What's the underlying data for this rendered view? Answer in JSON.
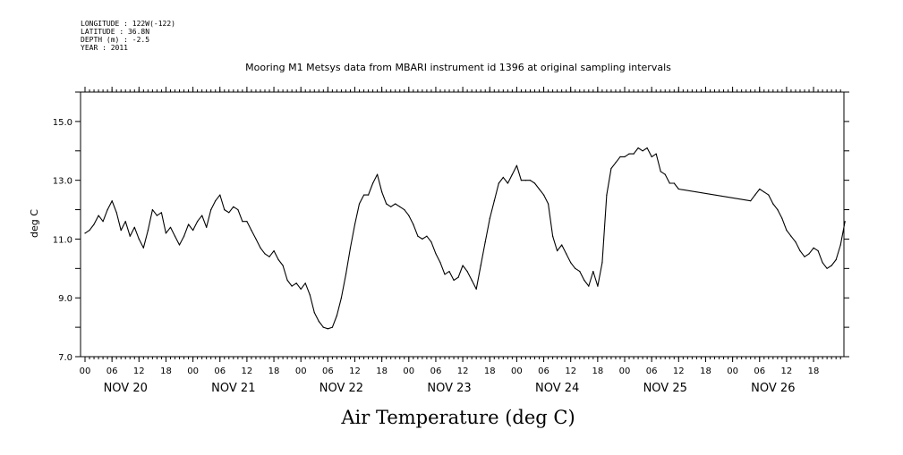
{
  "header": {
    "longitude": "LONGITUDE : 122W(-122)",
    "latitude": "LATITUDE : 36.8N",
    "depth": "DEPTH (m) : -2.5",
    "year": "YEAR : 2011"
  },
  "chart_data": {
    "type": "line",
    "title": "Mooring M1 Metsys data from MBARI instrument id 1396 at original sampling intervals",
    "xlabel": "Air Temperature (deg C)",
    "ylabel": "deg C",
    "ylim": [
      7.0,
      16.0
    ],
    "yticks": [
      7.0,
      9.0,
      11.0,
      13.0,
      15.0
    ],
    "ytick_labels": [
      "7.0",
      "9.0",
      "11.0",
      "13.0",
      "15.0"
    ],
    "xlim": [
      0,
      169
    ],
    "hour_tick_labels": [
      "00",
      "06",
      "12",
      "18",
      "00",
      "06",
      "12",
      "18",
      "00",
      "06",
      "12",
      "18",
      "00",
      "06",
      "12",
      "18",
      "00",
      "06",
      "12",
      "18",
      "00",
      "06",
      "12",
      "18",
      "00",
      "06",
      "12",
      "18"
    ],
    "day_labels": [
      "NOV 20",
      "NOV 21",
      "NOV 22",
      "NOV 23",
      "NOV 24",
      "NOV 25",
      "NOV 26"
    ],
    "x_units": "hours since 2011-11-20 00:00",
    "grid": false,
    "series": [
      {
        "color": "#000000",
        "points": [
          [
            0,
            11.2
          ],
          [
            1,
            11.3
          ],
          [
            2,
            11.5
          ],
          [
            3,
            11.8
          ],
          [
            4,
            11.6
          ],
          [
            5,
            12.0
          ],
          [
            6,
            12.3
          ],
          [
            7,
            11.9
          ],
          [
            8,
            11.3
          ],
          [
            9,
            11.6
          ],
          [
            10,
            11.1
          ],
          [
            11,
            11.4
          ],
          [
            12,
            11.0
          ],
          [
            13,
            10.7
          ],
          [
            14,
            11.3
          ],
          [
            15,
            12.0
          ],
          [
            16,
            11.8
          ],
          [
            17,
            11.9
          ],
          [
            18,
            11.2
          ],
          [
            19,
            11.4
          ],
          [
            20,
            11.1
          ],
          [
            21,
            10.8
          ],
          [
            22,
            11.1
          ],
          [
            23,
            11.5
          ],
          [
            24,
            11.3
          ],
          [
            25,
            11.6
          ],
          [
            26,
            11.8
          ],
          [
            27,
            11.4
          ],
          [
            28,
            12.0
          ],
          [
            29,
            12.3
          ],
          [
            30,
            12.5
          ],
          [
            31,
            12.0
          ],
          [
            32,
            11.9
          ],
          [
            33,
            12.1
          ],
          [
            34,
            12.0
          ],
          [
            35,
            11.6
          ],
          [
            36,
            11.6
          ],
          [
            37,
            11.3
          ],
          [
            38,
            11.0
          ],
          [
            39,
            10.7
          ],
          [
            40,
            10.5
          ],
          [
            41,
            10.4
          ],
          [
            42,
            10.6
          ],
          [
            43,
            10.3
          ],
          [
            44,
            10.1
          ],
          [
            45,
            9.6
          ],
          [
            46,
            9.4
          ],
          [
            47,
            9.5
          ],
          [
            48,
            9.3
          ],
          [
            49,
            9.5
          ],
          [
            50,
            9.1
          ],
          [
            51,
            8.5
          ],
          [
            52,
            8.2
          ],
          [
            53,
            8.0
          ],
          [
            54,
            7.95
          ],
          [
            55,
            8.0
          ],
          [
            56,
            8.4
          ],
          [
            57,
            9.0
          ],
          [
            58,
            9.8
          ],
          [
            59,
            10.7
          ],
          [
            60,
            11.5
          ],
          [
            61,
            12.2
          ],
          [
            62,
            12.5
          ],
          [
            63,
            12.5
          ],
          [
            64,
            12.9
          ],
          [
            65,
            13.2
          ],
          [
            66,
            12.6
          ],
          [
            67,
            12.2
          ],
          [
            68,
            12.1
          ],
          [
            69,
            12.2
          ],
          [
            70,
            12.1
          ],
          [
            71,
            12.0
          ],
          [
            72,
            11.8
          ],
          [
            73,
            11.5
          ],
          [
            74,
            11.1
          ],
          [
            75,
            11.0
          ],
          [
            76,
            11.1
          ],
          [
            77,
            10.9
          ],
          [
            78,
            10.5
          ],
          [
            79,
            10.2
          ],
          [
            80,
            9.8
          ],
          [
            81,
            9.9
          ],
          [
            82,
            9.6
          ],
          [
            83,
            9.7
          ],
          [
            84,
            10.1
          ],
          [
            85,
            9.9
          ],
          [
            86,
            9.6
          ],
          [
            87,
            9.3
          ],
          [
            88,
            10.1
          ],
          [
            89,
            10.9
          ],
          [
            90,
            11.7
          ],
          [
            91,
            12.3
          ],
          [
            92,
            12.9
          ],
          [
            93,
            13.1
          ],
          [
            94,
            12.9
          ],
          [
            95,
            13.2
          ],
          [
            96,
            13.5
          ],
          [
            97,
            13.0
          ],
          [
            98,
            13.0
          ],
          [
            99,
            13.0
          ],
          [
            100,
            12.9
          ],
          [
            101,
            12.7
          ],
          [
            102,
            12.5
          ],
          [
            103,
            12.2
          ],
          [
            104,
            11.1
          ],
          [
            105,
            10.6
          ],
          [
            106,
            10.8
          ],
          [
            107,
            10.5
          ],
          [
            108,
            10.2
          ],
          [
            109,
            10.0
          ],
          [
            110,
            9.9
          ],
          [
            111,
            9.6
          ],
          [
            112,
            9.4
          ],
          [
            113,
            9.9
          ],
          [
            114,
            9.4
          ],
          [
            115,
            10.2
          ],
          [
            116,
            12.5
          ],
          [
            117,
            13.4
          ],
          [
            118,
            13.6
          ],
          [
            119,
            13.8
          ],
          [
            120,
            13.8
          ],
          [
            121,
            13.9
          ],
          [
            122,
            13.9
          ],
          [
            123,
            14.1
          ],
          [
            124,
            14.0
          ],
          [
            125,
            14.1
          ],
          [
            126,
            13.8
          ],
          [
            127,
            13.9
          ],
          [
            128,
            13.3
          ],
          [
            129,
            13.2
          ],
          [
            130,
            12.9
          ],
          [
            131,
            12.9
          ],
          [
            132,
            12.7
          ],
          [
            148,
            12.3
          ],
          [
            149,
            12.5
          ],
          [
            150,
            12.7
          ],
          [
            151,
            12.6
          ],
          [
            152,
            12.5
          ],
          [
            153,
            12.2
          ],
          [
            154,
            12.0
          ],
          [
            155,
            11.7
          ],
          [
            156,
            11.3
          ],
          [
            157,
            11.1
          ],
          [
            158,
            10.9
          ],
          [
            159,
            10.6
          ],
          [
            160,
            10.4
          ],
          [
            161,
            10.5
          ],
          [
            162,
            10.7
          ],
          [
            163,
            10.6
          ],
          [
            164,
            10.2
          ],
          [
            165,
            10.0
          ],
          [
            166,
            10.1
          ],
          [
            167,
            10.3
          ],
          [
            168,
            10.8
          ],
          [
            169,
            11.6
          ]
        ]
      }
    ]
  }
}
